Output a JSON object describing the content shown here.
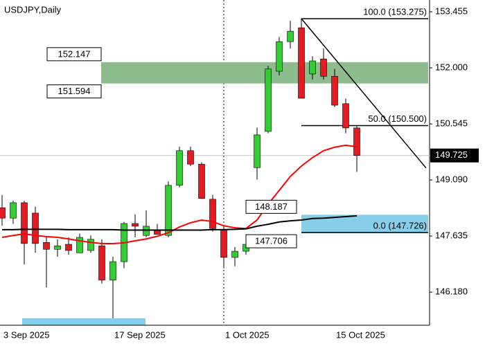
{
  "chart_data": {
    "type": "candlestick",
    "title": "USDJPY,Daily",
    "categories": [
      "3 Sep 2025",
      null,
      null,
      null,
      null,
      null,
      null,
      null,
      null,
      null,
      "17 Sep 2025",
      null,
      null,
      null,
      null,
      null,
      null,
      null,
      null,
      null,
      "1 Oct 2025",
      null,
      null,
      null,
      null,
      null,
      null,
      null,
      null,
      null,
      "15 Oct 2025",
      null,
      null
    ],
    "open": [
      148.37,
      148.1,
      148.5,
      148.23,
      147.47,
      147.29,
      147.42,
      147.2,
      147.26,
      147.38,
      146.49,
      146.97,
      147.96,
      147.65,
      147.78,
      147.65,
      148.95,
      149.85,
      149.5,
      148.59,
      147.8,
      147.08,
      147.24,
      149.41,
      150.35,
      151.91,
      152.68,
      153.04,
      151.84,
      152.23,
      151.78,
      151.07,
      150.44
    ],
    "high": [
      148.7,
      148.55,
      148.55,
      148.4,
      147.62,
      147.55,
      147.6,
      147.7,
      147.65,
      147.55,
      147.1,
      148.0,
      148.2,
      148.3,
      147.95,
      149.05,
      149.95,
      149.95,
      149.55,
      148.7,
      147.9,
      147.35,
      147.6,
      150.45,
      152.05,
      152.8,
      153.22,
      153.275,
      152.3,
      152.5,
      151.97,
      151.2,
      150.5
    ],
    "low": [
      147.9,
      147.95,
      146.9,
      147.2,
      146.3,
      147.1,
      147.15,
      147.2,
      147.2,
      146.4,
      145.5,
      146.8,
      147.6,
      147.6,
      147.7,
      147.6,
      148.9,
      149.45,
      148.6,
      147.75,
      146.8,
      146.85,
      147.15,
      149.1,
      150.3,
      151.8,
      152.5,
      151.21,
      151.7,
      151.7,
      150.98,
      150.3,
      149.3
    ],
    "close": [
      148.1,
      148.5,
      147.44,
      147.44,
      147.29,
      147.38,
      147.26,
      147.6,
      147.55,
      146.49,
      146.97,
      147.96,
      147.89,
      147.89,
      147.68,
      148.95,
      149.85,
      149.5,
      148.61,
      147.83,
      147.08,
      147.24,
      147.42,
      150.26,
      151.97,
      152.68,
      152.95,
      151.21,
      152.18,
      151.78,
      151.03,
      150.44,
      149.725
    ],
    "up_color": "#32cd32",
    "down_color": "#e31b23",
    "lines": [
      {
        "color": "#ff0000",
        "values": [
          147.6,
          147.65,
          147.69,
          147.65,
          147.62,
          147.6,
          147.56,
          147.51,
          147.47,
          147.44,
          147.44,
          147.46,
          147.51,
          147.56,
          147.63,
          147.72,
          147.87,
          147.98,
          148.05,
          148.01,
          147.9,
          147.85,
          147.83,
          148.05,
          148.46,
          148.82,
          149.18,
          149.45,
          149.67,
          149.85,
          149.94,
          149.99,
          149.95
        ]
      },
      {
        "color": "#000000",
        "values": [
          147.8,
          147.8,
          147.81,
          147.81,
          147.81,
          147.81,
          147.8,
          147.8,
          147.8,
          147.8,
          147.8,
          147.79,
          147.79,
          147.79,
          147.79,
          147.79,
          147.79,
          147.79,
          147.79,
          147.8,
          147.8,
          147.81,
          147.82,
          147.89,
          147.94,
          148.0,
          148.03,
          148.05,
          148.09,
          148.1,
          148.12,
          148.14,
          148.16
        ]
      }
    ],
    "zones": [
      {
        "top": 152.147,
        "bottom": 151.594,
        "color": "#8fbc8f"
      },
      {
        "top": 148.187,
        "bottom": 147.706,
        "color": "#87ceeb"
      }
    ],
    "fib": [
      {
        "value": 153.275,
        "label": "100.0 (153.275)"
      },
      {
        "value": 150.5,
        "label": "50.0 (150.500)"
      },
      {
        "value": 147.726,
        "label": "0.0 (147.726)"
      }
    ],
    "trendline": [
      153.275,
      149.4
    ],
    "last_price": 149.725,
    "ylim": [
      145.32,
      153.76
    ],
    "yticks": [
      153.455,
      {
        "value": 152,
        "label": "152.000"
      },
      150.545,
      {
        "value": 149.09,
        "label": "149.090"
      },
      147.635,
      {
        "value": 146.18,
        "label": "146.180"
      }
    ]
  }
}
